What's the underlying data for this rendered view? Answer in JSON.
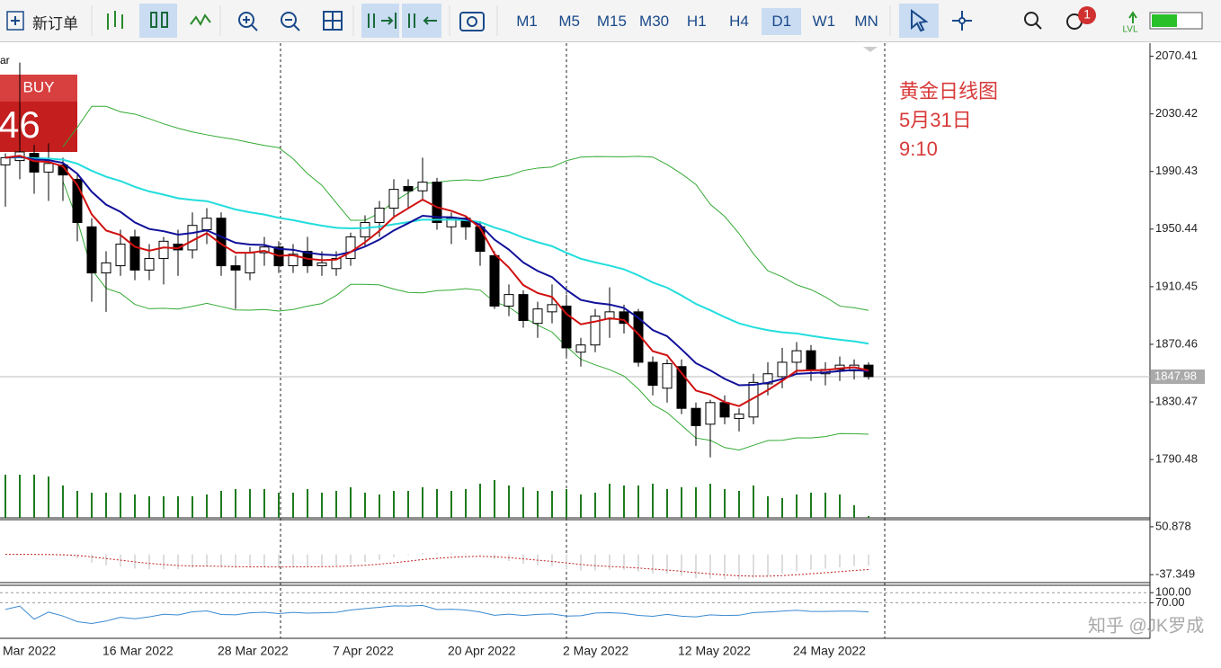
{
  "toolbar": {
    "new_order": "新订单",
    "timeframes": [
      "M1",
      "M5",
      "M15",
      "M30",
      "H1",
      "H4",
      "D1",
      "W1",
      "MN"
    ],
    "active_timeframe": "D1",
    "notifications": 1,
    "lvl": "LVL"
  },
  "trade_panel": {
    "buy": "BUY",
    "price_fragment": "46"
  },
  "symbol_fragment": "ar",
  "annotation": [
    "黄金日线图",
    "5月31日",
    "9:10"
  ],
  "watermark": "知乎 @JK罗成",
  "chart_data": {
    "type": "candlestick",
    "categories": [
      "Mar 2022",
      null,
      null,
      null,
      null,
      null,
      null,
      "16 Mar 2022",
      null,
      null,
      null,
      null,
      null,
      null,
      null,
      "28 Mar 2022",
      null,
      null,
      null,
      null,
      null,
      null,
      null,
      "7 Apr 2022",
      null,
      null,
      null,
      null,
      null,
      null,
      null,
      "20 Apr 2022",
      null,
      null,
      null,
      null,
      null,
      null,
      null,
      "2 May 2022",
      null,
      null,
      null,
      null,
      null,
      null,
      null,
      "12 May 2022",
      null,
      null,
      null,
      null,
      null,
      null,
      null,
      "24 May 2022",
      null,
      null,
      null,
      null,
      null
    ],
    "ohlc": [
      [
        1995,
        2003,
        1966,
        2000
      ],
      [
        1998,
        2066,
        1985,
        2004
      ],
      [
        2003,
        2009,
        1975,
        1990
      ],
      [
        1990,
        2010,
        1970,
        1996
      ],
      [
        1995,
        2000,
        1970,
        1988
      ],
      [
        1985,
        1988,
        1942,
        1955
      ],
      [
        1952,
        1958,
        1900,
        1920
      ],
      [
        1920,
        1935,
        1893,
        1927
      ],
      [
        1925,
        1950,
        1918,
        1940
      ],
      [
        1945,
        1950,
        1915,
        1922
      ],
      [
        1922,
        1940,
        1915,
        1930
      ],
      [
        1930,
        1945,
        1912,
        1942
      ],
      [
        1940,
        1950,
        1918,
        1936
      ],
      [
        1936,
        1962,
        1930,
        1953
      ],
      [
        1950,
        1965,
        1940,
        1958
      ],
      [
        1958,
        1962,
        1918,
        1925
      ],
      [
        1925,
        1932,
        1895,
        1922
      ],
      [
        1920,
        1938,
        1915,
        1934
      ],
      [
        1934,
        1945,
        1925,
        1938
      ],
      [
        1938,
        1942,
        1920,
        1925
      ],
      [
        1925,
        1940,
        1920,
        1933
      ],
      [
        1935,
        1945,
        1920,
        1925
      ],
      [
        1925,
        1935,
        1918,
        1927
      ],
      [
        1923,
        1935,
        1918,
        1930
      ],
      [
        1930,
        1948,
        1925,
        1945
      ],
      [
        1945,
        1960,
        1938,
        1955
      ],
      [
        1955,
        1970,
        1945,
        1965
      ],
      [
        1965,
        1985,
        1958,
        1978
      ],
      [
        1980,
        1985,
        1965,
        1977
      ],
      [
        1977,
        2000,
        1970,
        1983
      ],
      [
        1983,
        1986,
        1950,
        1955
      ],
      [
        1952,
        1962,
        1940,
        1958
      ],
      [
        1958,
        1960,
        1943,
        1952
      ],
      [
        1952,
        1956,
        1925,
        1935
      ],
      [
        1932,
        1935,
        1895,
        1897
      ],
      [
        1897,
        1912,
        1890,
        1905
      ],
      [
        1905,
        1908,
        1882,
        1887
      ],
      [
        1885,
        1900,
        1875,
        1895
      ],
      [
        1893,
        1912,
        1885,
        1898
      ],
      [
        1897,
        1905,
        1862,
        1868
      ],
      [
        1865,
        1875,
        1855,
        1870
      ],
      [
        1870,
        1895,
        1865,
        1890
      ],
      [
        1888,
        1910,
        1875,
        1893
      ],
      [
        1893,
        1898,
        1878,
        1885
      ],
      [
        1893,
        1895,
        1855,
        1858
      ],
      [
        1858,
        1862,
        1835,
        1842
      ],
      [
        1840,
        1860,
        1830,
        1857
      ],
      [
        1855,
        1860,
        1822,
        1826
      ],
      [
        1826,
        1830,
        1800,
        1814
      ],
      [
        1815,
        1832,
        1792,
        1830
      ],
      [
        1830,
        1835,
        1815,
        1820
      ],
      [
        1819,
        1826,
        1810,
        1822
      ],
      [
        1820,
        1850,
        1815,
        1844
      ],
      [
        1843,
        1858,
        1835,
        1850
      ],
      [
        1848,
        1868,
        1840,
        1858
      ],
      [
        1858,
        1872,
        1850,
        1866
      ],
      [
        1866,
        1870,
        1845,
        1853
      ],
      [
        1850,
        1858,
        1842,
        1853
      ],
      [
        1853,
        1862,
        1845,
        1856
      ],
      [
        1852,
        1860,
        1846,
        1856
      ],
      [
        1856,
        1858,
        1846,
        1848
      ]
    ],
    "volume": [
      48,
      48,
      48,
      46,
      36,
      30,
      28,
      28,
      28,
      26,
      24,
      24,
      24,
      24,
      26,
      30,
      32,
      32,
      32,
      28,
      28,
      32,
      28,
      30,
      34,
      28,
      26,
      30,
      30,
      34,
      32,
      30,
      32,
      38,
      42,
      36,
      34,
      30,
      30,
      32,
      26,
      28,
      38,
      36,
      36,
      38,
      32,
      34,
      34,
      38,
      32,
      30,
      36,
      24,
      22,
      26,
      28,
      28,
      26,
      14,
      2
    ],
    "ylim": [
      1750,
      2077
    ],
    "yticks": [
      2070.41,
      2030.42,
      1990.43,
      1950.44,
      1910.45,
      1870.46,
      1830.47,
      1790.48
    ],
    "current_price": 1847.98,
    "colors": {
      "up": "#ffffff",
      "down": "#000000",
      "volume": "#1e7b1e",
      "fast": "#d01010",
      "mid": "#10109a",
      "slow": "#22dddd",
      "bands": "#33aa33"
    },
    "panes": [
      {
        "ylim": [
          -52,
          64
        ],
        "yticks": [
          50.878,
          -37.349
        ]
      },
      {
        "ylim": [
          -36,
          122
        ],
        "yticks": [
          {
            "value": 100,
            "label": "100.00"
          },
          {
            "value": 70,
            "label": "70.00"
          }
        ]
      }
    ]
  }
}
